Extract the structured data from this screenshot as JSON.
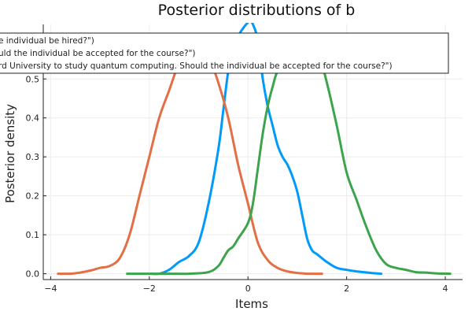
{
  "chart_data": {
    "type": "line",
    "title": "Posterior distributions of b",
    "xlabel": "Items",
    "ylabel": "Posterior density",
    "xlim": [
      -4.15,
      4.35
    ],
    "ylim": [
      -0.015,
      0.64
    ],
    "xticks": [
      -4,
      -2,
      0,
      2,
      4
    ],
    "yticks": [
      0.0,
      0.1,
      0.2,
      0.3,
      0.4,
      0.5
    ],
    "grid": true,
    "legend_position": "top-left",
    "series": [
      {
        "name": "e individual be hired?\")",
        "color": "#009AFA",
        "x": [
          -1.95,
          -1.8,
          -1.6,
          -1.4,
          -1.2,
          -1.0,
          -0.8,
          -0.6,
          -0.5,
          -0.4,
          -0.3,
          -0.2,
          -0.1,
          0.0,
          0.05,
          0.1,
          0.2,
          0.3,
          0.4,
          0.5,
          0.6,
          0.7,
          0.8,
          0.9,
          1.0,
          1.1,
          1.2,
          1.3,
          1.4,
          1.6,
          1.8,
          2.0,
          2.2,
          2.5,
          2.7
        ],
        "y": [
          0.0,
          0.0,
          0.01,
          0.03,
          0.045,
          0.08,
          0.18,
          0.32,
          0.42,
          0.52,
          0.58,
          0.61,
          0.63,
          0.645,
          0.648,
          0.64,
          0.6,
          0.5,
          0.43,
          0.38,
          0.33,
          0.3,
          0.28,
          0.25,
          0.21,
          0.15,
          0.09,
          0.06,
          0.05,
          0.03,
          0.015,
          0.01,
          0.006,
          0.002,
          0.0
        ]
      },
      {
        "name": "uld the individual be accepted for the course?\")",
        "color": "#E26F46",
        "x": [
          -3.85,
          -3.6,
          -3.4,
          -3.2,
          -3.0,
          -2.8,
          -2.6,
          -2.4,
          -2.2,
          -2.0,
          -1.8,
          -1.6,
          -1.4,
          -1.2,
          -1.0,
          -0.8,
          -0.6,
          -0.4,
          -0.2,
          0.0,
          0.2,
          0.4,
          0.6,
          0.8,
          1.0,
          1.2,
          1.5
        ],
        "y": [
          0.0,
          0.0,
          0.003,
          0.008,
          0.015,
          0.02,
          0.04,
          0.1,
          0.2,
          0.3,
          0.4,
          0.47,
          0.54,
          0.58,
          0.6,
          0.56,
          0.49,
          0.4,
          0.28,
          0.18,
          0.08,
          0.035,
          0.015,
          0.006,
          0.002,
          0.0,
          0.0
        ]
      },
      {
        "name": "rd University to study quantum computing. Should the individual be accepted for the course?\")",
        "color": "#3DA44D",
        "x": [
          -2.45,
          -2.2,
          -2.0,
          -1.6,
          -1.2,
          -0.8,
          -0.6,
          -0.5,
          -0.4,
          -0.3,
          -0.2,
          0.0,
          0.1,
          0.2,
          0.3,
          0.4,
          0.5,
          0.6,
          0.8,
          1.0,
          1.2,
          1.4,
          1.6,
          1.8,
          2.0,
          2.2,
          2.4,
          2.6,
          2.8,
          3.0,
          3.2,
          3.4,
          3.6,
          3.8,
          4.1
        ],
        "y": [
          0.0,
          0.0,
          0.0,
          0.0,
          0.0,
          0.004,
          0.02,
          0.04,
          0.06,
          0.07,
          0.09,
          0.13,
          0.18,
          0.27,
          0.36,
          0.43,
          0.48,
          0.52,
          0.55,
          0.58,
          0.6,
          0.58,
          0.49,
          0.38,
          0.26,
          0.19,
          0.12,
          0.06,
          0.025,
          0.015,
          0.01,
          0.004,
          0.003,
          0.001,
          0.0
        ]
      }
    ]
  }
}
